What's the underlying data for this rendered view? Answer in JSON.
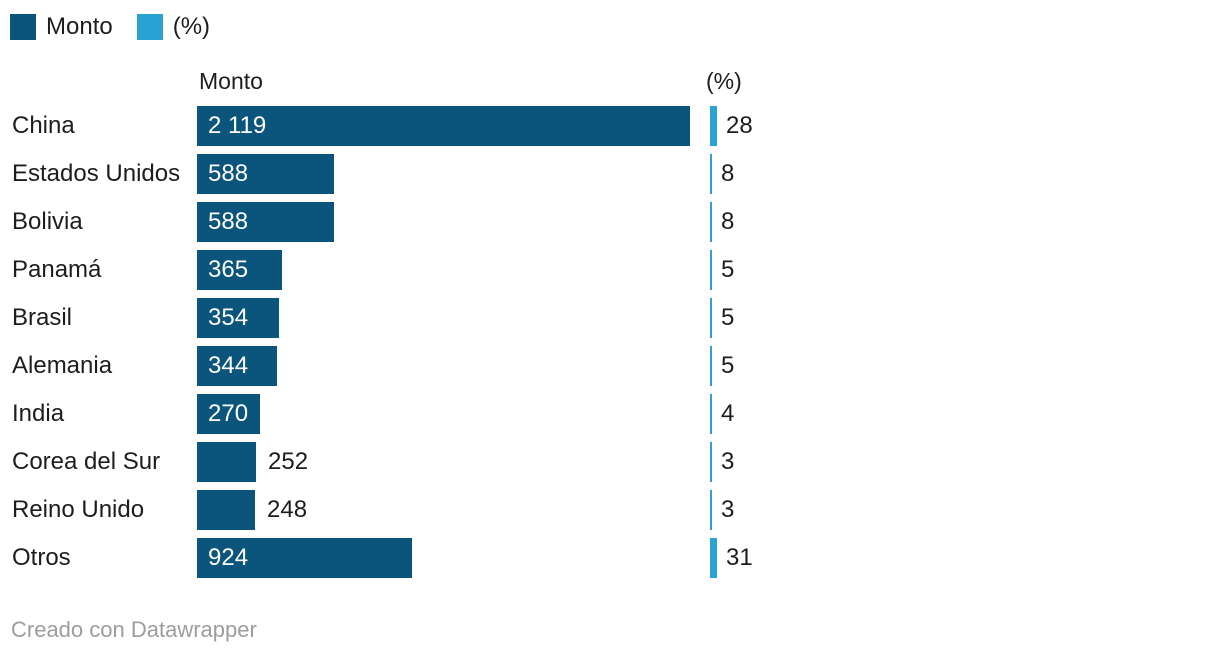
{
  "legend": {
    "items": [
      {
        "label": "Monto",
        "swatch": "monto_bar"
      },
      {
        "label": "(%)",
        "swatch": "pct_bar"
      }
    ]
  },
  "headers": {
    "monto": "Monto",
    "pct": "(%)"
  },
  "colors": {
    "monto_bar": "#0b547c",
    "pct_bar": "#2aa3d4",
    "label_text": "#1d1d1d",
    "inside_value_text": "#ffffff",
    "footer_text": "#9d9d9d"
  },
  "rows": [
    {
      "label": "China",
      "monto_display": "2 119",
      "monto": 2119,
      "pct_display": "28",
      "pct": 28
    },
    {
      "label": "Estados Unidos",
      "monto_display": "588",
      "monto": 588,
      "pct_display": "8",
      "pct": 8
    },
    {
      "label": "Bolivia",
      "monto_display": "588",
      "monto": 588,
      "pct_display": "8",
      "pct": 8
    },
    {
      "label": "Panamá",
      "monto_display": "365",
      "monto": 365,
      "pct_display": "5",
      "pct": 5
    },
    {
      "label": "Brasil",
      "monto_display": "354",
      "monto": 354,
      "pct_display": "5",
      "pct": 5
    },
    {
      "label": "Alemania",
      "monto_display": "344",
      "monto": 344,
      "pct_display": "5",
      "pct": 5
    },
    {
      "label": "India",
      "monto_display": "270",
      "monto": 270,
      "pct_display": "4",
      "pct": 4
    },
    {
      "label": "Corea del Sur",
      "monto_display": "252",
      "monto": 252,
      "pct_display": "3",
      "pct": 3
    },
    {
      "label": "Reino Unido",
      "monto_display": "248",
      "monto": 248,
      "pct_display": "3",
      "pct": 3
    },
    {
      "label": "Otros",
      "monto_display": "924",
      "monto": 924,
      "pct_display": "31",
      "pct": 31
    }
  ],
  "chart_data": {
    "type": "bar",
    "orientation": "horizontal",
    "categories": [
      "China",
      "Estados Unidos",
      "Bolivia",
      "Panamá",
      "Brasil",
      "Alemania",
      "India",
      "Corea del Sur",
      "Reino Unido",
      "Otros"
    ],
    "series": [
      {
        "name": "Monto",
        "values": [
          2119,
          588,
          588,
          365,
          354,
          344,
          270,
          252,
          248,
          924
        ]
      },
      {
        "name": "(%)",
        "values": [
          28,
          8,
          8,
          5,
          5,
          5,
          4,
          3,
          3,
          31
        ]
      }
    ],
    "title": "",
    "xlabel": "",
    "ylabel": "",
    "legend_position": "top-left",
    "grid": false,
    "value_labels": true
  },
  "footer": {
    "text": "Creado con Datawrapper"
  }
}
